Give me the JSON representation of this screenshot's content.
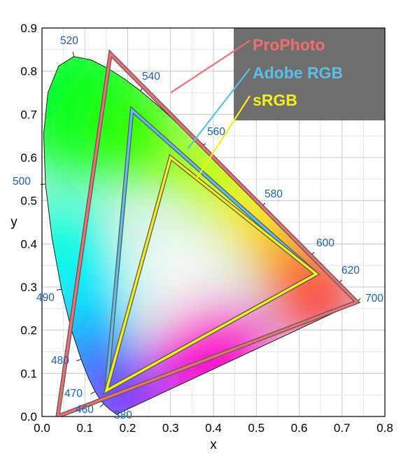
{
  "chart_data": {
    "type": "scatter",
    "xlabel": "x",
    "ylabel": "y",
    "xlim": [
      0.0,
      0.8
    ],
    "ylim": [
      0.0,
      0.9
    ],
    "x_ticks": [
      "0.0",
      "0.1",
      "0.2",
      "0.3",
      "0.4",
      "0.5",
      "0.6",
      "0.7",
      "0.8"
    ],
    "y_ticks": [
      "0.0",
      "0.1",
      "0.2",
      "0.3",
      "0.4",
      "0.5",
      "0.6",
      "0.7",
      "0.8",
      "0.9"
    ],
    "grid": true,
    "legend_position": "top-right",
    "legend_background": "#6e6e6e",
    "spectral_locus": [
      {
        "nm": 380,
        "x": 0.1741,
        "y": 0.005
      },
      {
        "nm": 450,
        "x": 0.1566,
        "y": 0.0177
      },
      {
        "nm": 460,
        "x": 0.144,
        "y": 0.0297
      },
      {
        "nm": 465,
        "x": 0.1355,
        "y": 0.0399
      },
      {
        "nm": 470,
        "x": 0.1241,
        "y": 0.0578
      },
      {
        "nm": 475,
        "x": 0.1096,
        "y": 0.0868
      },
      {
        "nm": 480,
        "x": 0.0913,
        "y": 0.1327
      },
      {
        "nm": 485,
        "x": 0.0687,
        "y": 0.2007
      },
      {
        "nm": 490,
        "x": 0.0454,
        "y": 0.295
      },
      {
        "nm": 495,
        "x": 0.0235,
        "y": 0.4127
      },
      {
        "nm": 500,
        "x": 0.0082,
        "y": 0.5384
      },
      {
        "nm": 505,
        "x": 0.0039,
        "y": 0.6548
      },
      {
        "nm": 510,
        "x": 0.0139,
        "y": 0.7502
      },
      {
        "nm": 515,
        "x": 0.0389,
        "y": 0.812
      },
      {
        "nm": 520,
        "x": 0.0743,
        "y": 0.8338
      },
      {
        "nm": 525,
        "x": 0.1142,
        "y": 0.8262
      },
      {
        "nm": 530,
        "x": 0.1547,
        "y": 0.8059
      },
      {
        "nm": 535,
        "x": 0.1929,
        "y": 0.7816
      },
      {
        "nm": 540,
        "x": 0.2296,
        "y": 0.7543
      },
      {
        "nm": 545,
        "x": 0.2658,
        "y": 0.7243
      },
      {
        "nm": 550,
        "x": 0.3016,
        "y": 0.6923
      },
      {
        "nm": 555,
        "x": 0.3373,
        "y": 0.6589
      },
      {
        "nm": 560,
        "x": 0.3731,
        "y": 0.6245
      },
      {
        "nm": 570,
        "x": 0.4441,
        "y": 0.5547
      },
      {
        "nm": 580,
        "x": 0.5125,
        "y": 0.4866
      },
      {
        "nm": 590,
        "x": 0.5752,
        "y": 0.4242
      },
      {
        "nm": 600,
        "x": 0.627,
        "y": 0.3725
      },
      {
        "nm": 610,
        "x": 0.6658,
        "y": 0.334
      },
      {
        "nm": 620,
        "x": 0.6915,
        "y": 0.3083
      },
      {
        "nm": 640,
        "x": 0.719,
        "y": 0.2809
      },
      {
        "nm": 700,
        "x": 0.7347,
        "y": 0.2653
      }
    ],
    "wavelength_labels": [
      "380",
      "460",
      "470",
      "480",
      "490",
      "500",
      "520",
      "540",
      "560",
      "580",
      "600",
      "620",
      "700"
    ],
    "series": [
      {
        "name": "ProPhoto",
        "color": "#f26d6d",
        "points": [
          {
            "x": 0.7347,
            "y": 0.2653
          },
          {
            "x": 0.1596,
            "y": 0.8404
          },
          {
            "x": 0.0366,
            "y": 0.0001
          }
        ]
      },
      {
        "name": "Adobe RGB",
        "color": "#5bbfe6",
        "points": [
          {
            "x": 0.64,
            "y": 0.33
          },
          {
            "x": 0.21,
            "y": 0.71
          },
          {
            "x": 0.15,
            "y": 0.06
          }
        ]
      },
      {
        "name": "sRGB",
        "color": "#f5ee1c",
        "points": [
          {
            "x": 0.64,
            "y": 0.33
          },
          {
            "x": 0.3,
            "y": 0.6
          },
          {
            "x": 0.15,
            "y": 0.06
          }
        ]
      }
    ]
  }
}
